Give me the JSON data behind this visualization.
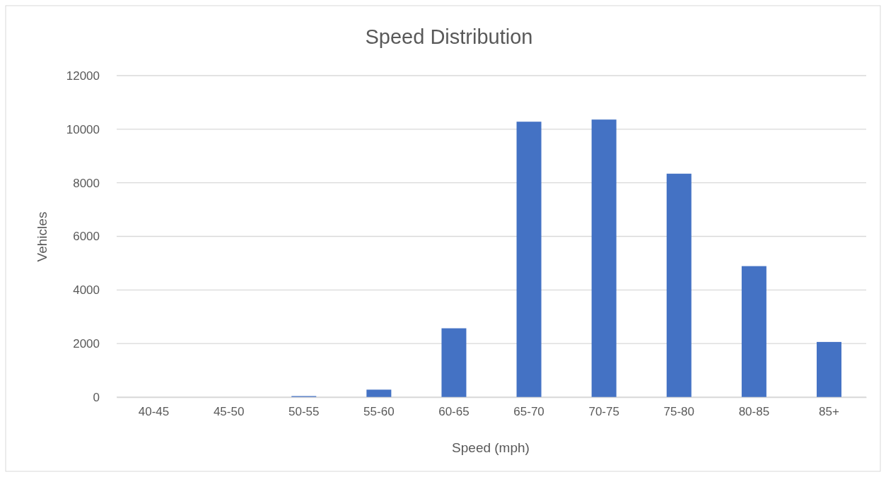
{
  "chart_data": {
    "type": "bar",
    "title": "Speed Distribution",
    "xlabel": "Speed (mph)",
    "ylabel": "Vehicles",
    "categories": [
      "40-45",
      "45-50",
      "50-55",
      "55-60",
      "60-65",
      "65-70",
      "70-75",
      "75-80",
      "80-85",
      "85+"
    ],
    "values": [
      0,
      0,
      40,
      280,
      2570,
      10280,
      10360,
      8340,
      4890,
      2060
    ],
    "color": "#4472c4",
    "ylim": [
      0,
      12000
    ],
    "yticks": [
      0,
      2000,
      4000,
      6000,
      8000,
      10000,
      12000
    ],
    "grid": "y"
  }
}
